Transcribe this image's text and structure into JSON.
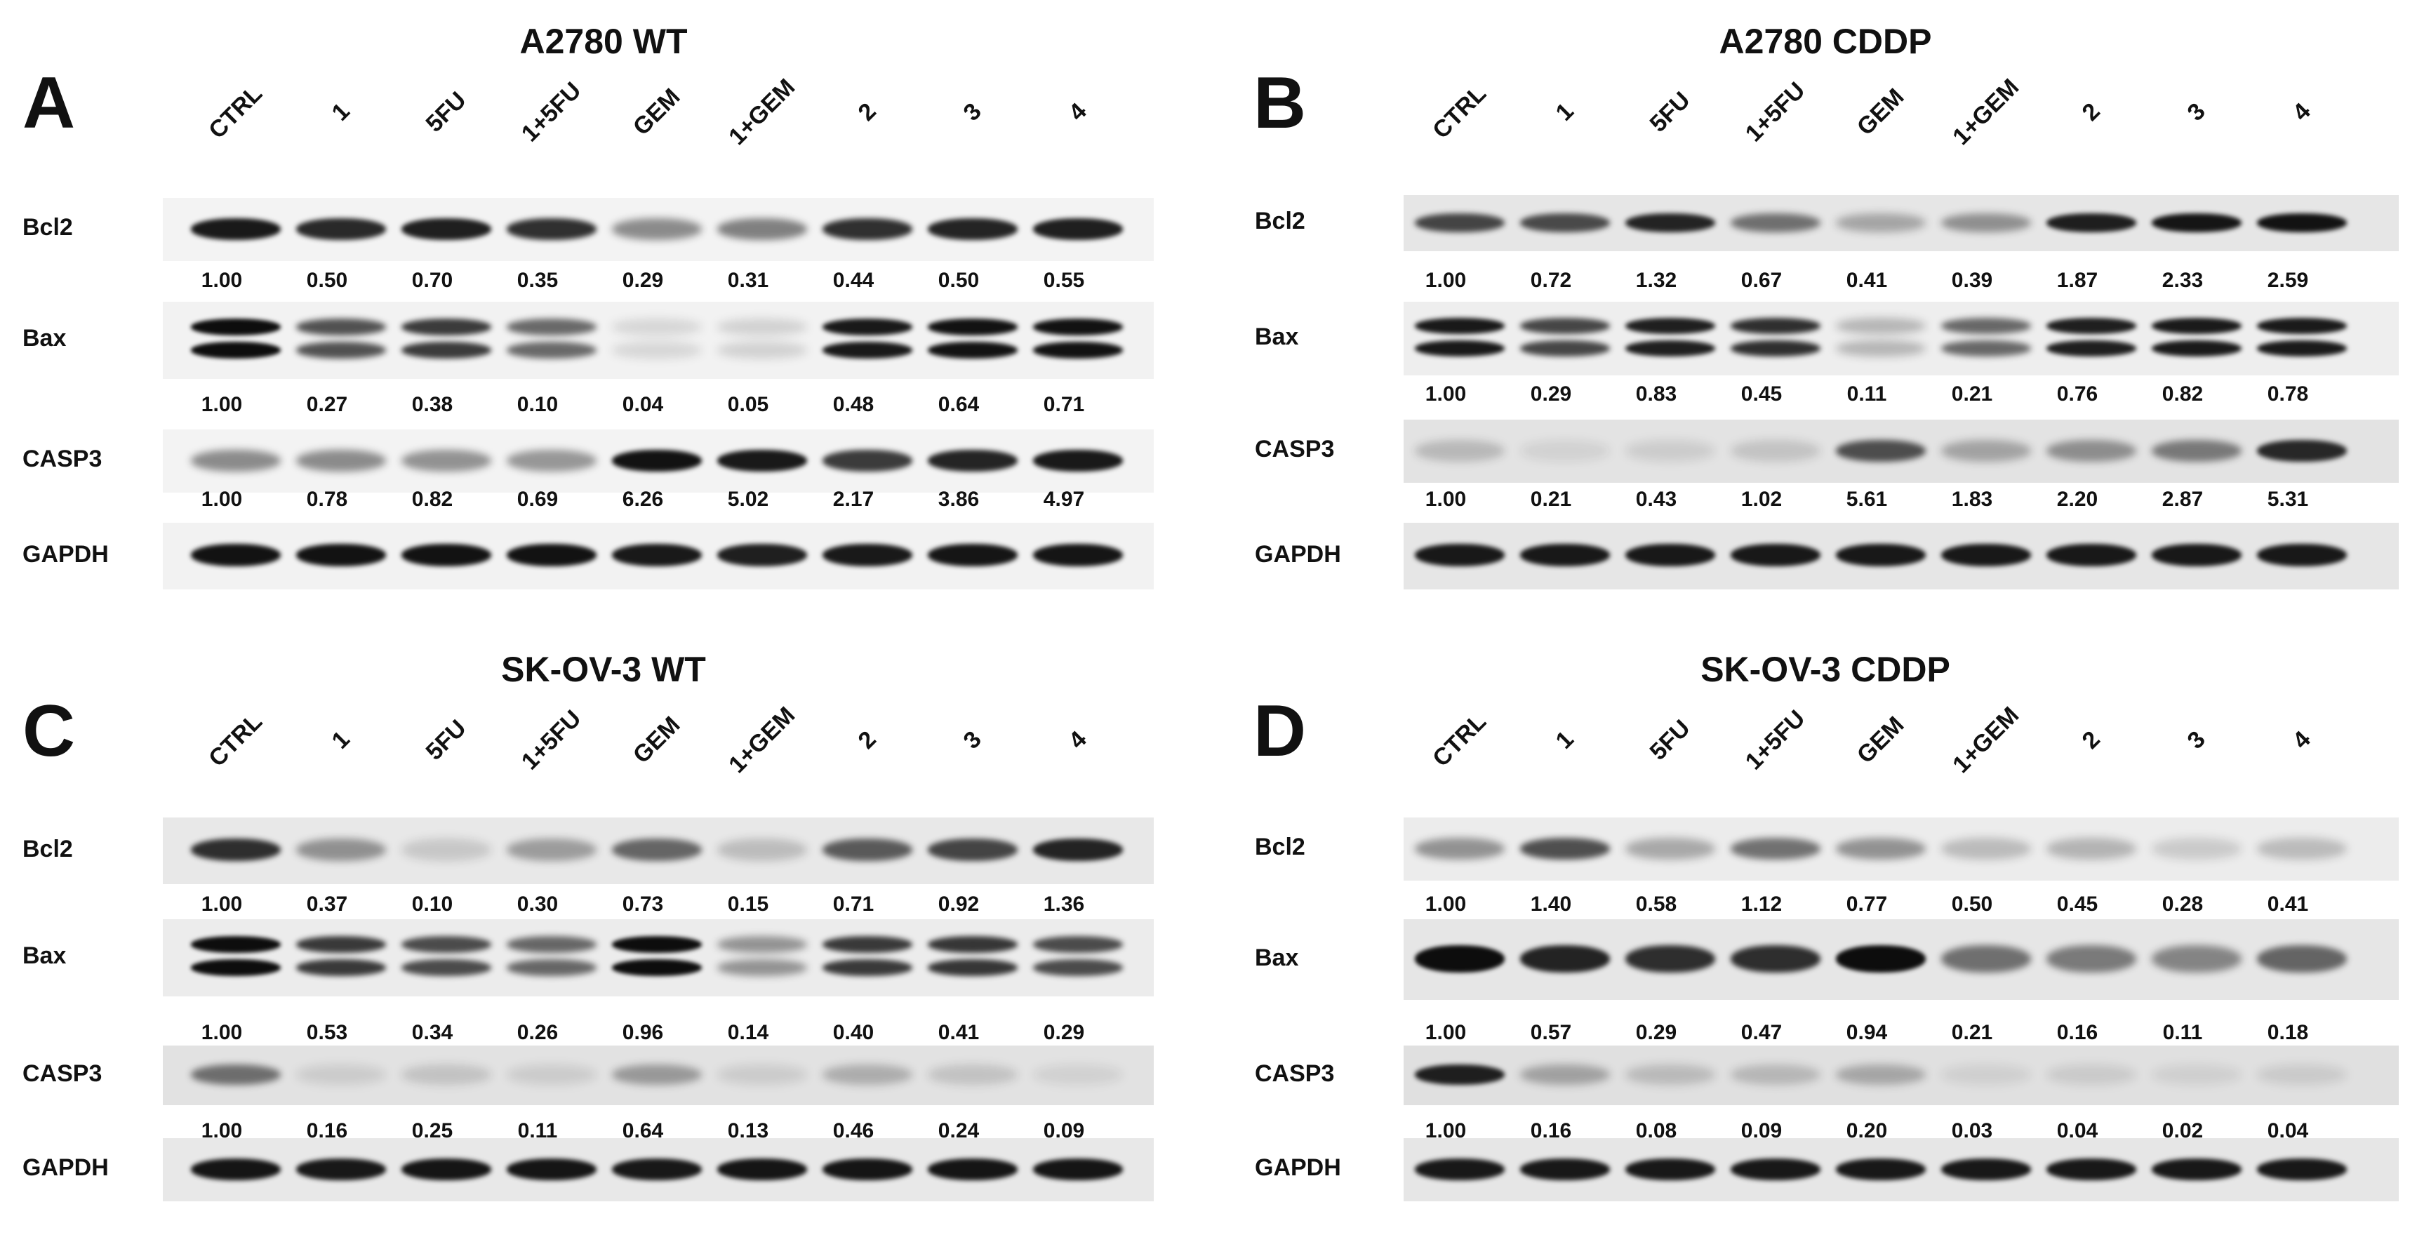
{
  "lanes": [
    "CTRL",
    "1",
    "5FU",
    "1+5FU",
    "GEM",
    "1+GEM",
    "2",
    "3",
    "4"
  ],
  "colors": {
    "band": "#0d0d0d",
    "membrane": "#f1f1f1",
    "text": "#111111"
  },
  "panels": [
    {
      "letter": "A",
      "title": "A2780 WT",
      "blots": [
        {
          "protein": "Bcl2",
          "membrane": "#f3f3f3",
          "intensity": [
            0.95,
            0.88,
            0.92,
            0.85,
            0.45,
            0.5,
            0.85,
            0.9,
            0.92
          ],
          "doublet": false,
          "values": [
            "1.00",
            "0.50",
            "0.70",
            "0.35",
            "0.29",
            "0.31",
            "0.44",
            "0.50",
            "0.55"
          ]
        },
        {
          "protein": "Bax",
          "membrane": "#f2f2f2",
          "intensity": [
            1.0,
            0.7,
            0.8,
            0.6,
            0.12,
            0.14,
            0.95,
            0.98,
            0.98
          ],
          "doublet": true,
          "values": [
            "1.00",
            "0.27",
            "0.38",
            "0.10",
            "0.04",
            "0.05",
            "0.48",
            "0.64",
            "0.71"
          ]
        },
        {
          "protein": "CASP3",
          "membrane": "#f3f3f3",
          "intensity": [
            0.45,
            0.45,
            0.42,
            0.4,
            0.98,
            0.95,
            0.8,
            0.9,
            0.95
          ],
          "doublet": false,
          "values": [
            "1.00",
            "0.78",
            "0.82",
            "0.69",
            "6.26",
            "5.02",
            "2.17",
            "3.86",
            "4.97"
          ]
        },
        {
          "protein": "GAPDH",
          "membrane": "#f2f2f2",
          "intensity": [
            0.98,
            0.98,
            0.98,
            0.98,
            0.95,
            0.92,
            0.95,
            0.97,
            0.97
          ],
          "doublet": false,
          "values": []
        }
      ]
    },
    {
      "letter": "B",
      "title": "A2780 CDDP",
      "blots": [
        {
          "protein": "Bcl2",
          "membrane": "#e6e6e6",
          "intensity": [
            0.75,
            0.72,
            0.9,
            0.55,
            0.3,
            0.4,
            0.92,
            0.96,
            0.98
          ],
          "doublet": false,
          "values": [
            "1.00",
            "0.72",
            "1.32",
            "0.67",
            "0.41",
            "0.39",
            "1.87",
            "2.33",
            "2.59"
          ]
        },
        {
          "protein": "Bax",
          "membrane": "#eeeeee",
          "intensity": [
            0.95,
            0.75,
            0.92,
            0.85,
            0.25,
            0.6,
            0.92,
            0.94,
            0.94
          ],
          "doublet": true,
          "values": [
            "1.00",
            "0.29",
            "0.83",
            "0.45",
            "0.11",
            "0.21",
            "0.76",
            "0.82",
            "0.78"
          ]
        },
        {
          "protein": "CASP3",
          "membrane": "#e3e3e3",
          "intensity": [
            0.2,
            0.08,
            0.1,
            0.15,
            0.7,
            0.3,
            0.4,
            0.5,
            0.88
          ],
          "doublet": false,
          "values": [
            "1.00",
            "0.21",
            "0.43",
            "1.02",
            "5.61",
            "1.83",
            "2.20",
            "2.87",
            "5.31"
          ]
        },
        {
          "protein": "GAPDH",
          "membrane": "#e6e6e6",
          "intensity": [
            0.95,
            0.95,
            0.95,
            0.95,
            0.95,
            0.95,
            0.95,
            0.95,
            0.95
          ],
          "doublet": false,
          "values": []
        }
      ]
    },
    {
      "letter": "C",
      "title": "SK-OV-3 WT",
      "blots": [
        {
          "protein": "Bcl2",
          "membrane": "#e8e8e8",
          "intensity": [
            0.85,
            0.4,
            0.15,
            0.35,
            0.6,
            0.2,
            0.65,
            0.75,
            0.9
          ],
          "doublet": false,
          "values": [
            "1.00",
            "0.37",
            "0.10",
            "0.30",
            "0.73",
            "0.15",
            "0.71",
            "0.92",
            "1.36"
          ]
        },
        {
          "protein": "Bax",
          "membrane": "#ececec",
          "intensity": [
            1.0,
            0.8,
            0.72,
            0.6,
            1.0,
            0.4,
            0.8,
            0.82,
            0.72
          ],
          "doublet": true,
          "values": [
            "1.00",
            "0.53",
            "0.34",
            "0.26",
            "0.96",
            "0.14",
            "0.40",
            "0.41",
            "0.29"
          ]
        },
        {
          "protein": "CASP3",
          "membrane": "#e2e2e2",
          "intensity": [
            0.55,
            0.1,
            0.15,
            0.1,
            0.35,
            0.1,
            0.25,
            0.15,
            0.08
          ],
          "doublet": false,
          "values": [
            "1.00",
            "0.16",
            "0.25",
            "0.11",
            "0.64",
            "0.13",
            "0.46",
            "0.24",
            "0.09"
          ]
        },
        {
          "protein": "GAPDH",
          "membrane": "#e8e8e8",
          "intensity": [
            0.97,
            0.95,
            0.97,
            0.97,
            0.95,
            0.97,
            0.97,
            0.97,
            0.97
          ],
          "doublet": false,
          "values": []
        }
      ]
    },
    {
      "letter": "D",
      "title": "SK-OV-3 CDDP",
      "blots": [
        {
          "protein": "Bcl2",
          "membrane": "#ececec",
          "intensity": [
            0.4,
            0.7,
            0.3,
            0.55,
            0.4,
            0.22,
            0.25,
            0.15,
            0.22
          ],
          "doublet": false,
          "values": [
            "1.00",
            "1.40",
            "0.58",
            "1.12",
            "0.77",
            "0.50",
            "0.45",
            "0.28",
            "0.41"
          ]
        },
        {
          "protein": "Bax",
          "membrane": "#e6e6e6",
          "intensity": [
            1.0,
            0.9,
            0.85,
            0.85,
            1.0,
            0.55,
            0.5,
            0.45,
            0.6
          ],
          "doublet": false,
          "values": [
            "1.00",
            "0.57",
            "0.29",
            "0.47",
            "0.94",
            "0.21",
            "0.16",
            "0.11",
            "0.18"
          ]
        },
        {
          "protein": "CASP3",
          "membrane": "#e0e0e0",
          "intensity": [
            0.92,
            0.3,
            0.18,
            0.2,
            0.28,
            0.08,
            0.1,
            0.08,
            0.1
          ],
          "doublet": false,
          "values": [
            "1.00",
            "0.16",
            "0.08",
            "0.09",
            "0.20",
            "0.03",
            "0.04",
            "0.02",
            "0.04"
          ]
        },
        {
          "protein": "GAPDH",
          "membrane": "#e6e6e6",
          "intensity": [
            0.95,
            0.95,
            0.95,
            0.95,
            0.95,
            0.95,
            0.95,
            0.95,
            0.95
          ],
          "doublet": false,
          "values": []
        }
      ]
    }
  ]
}
